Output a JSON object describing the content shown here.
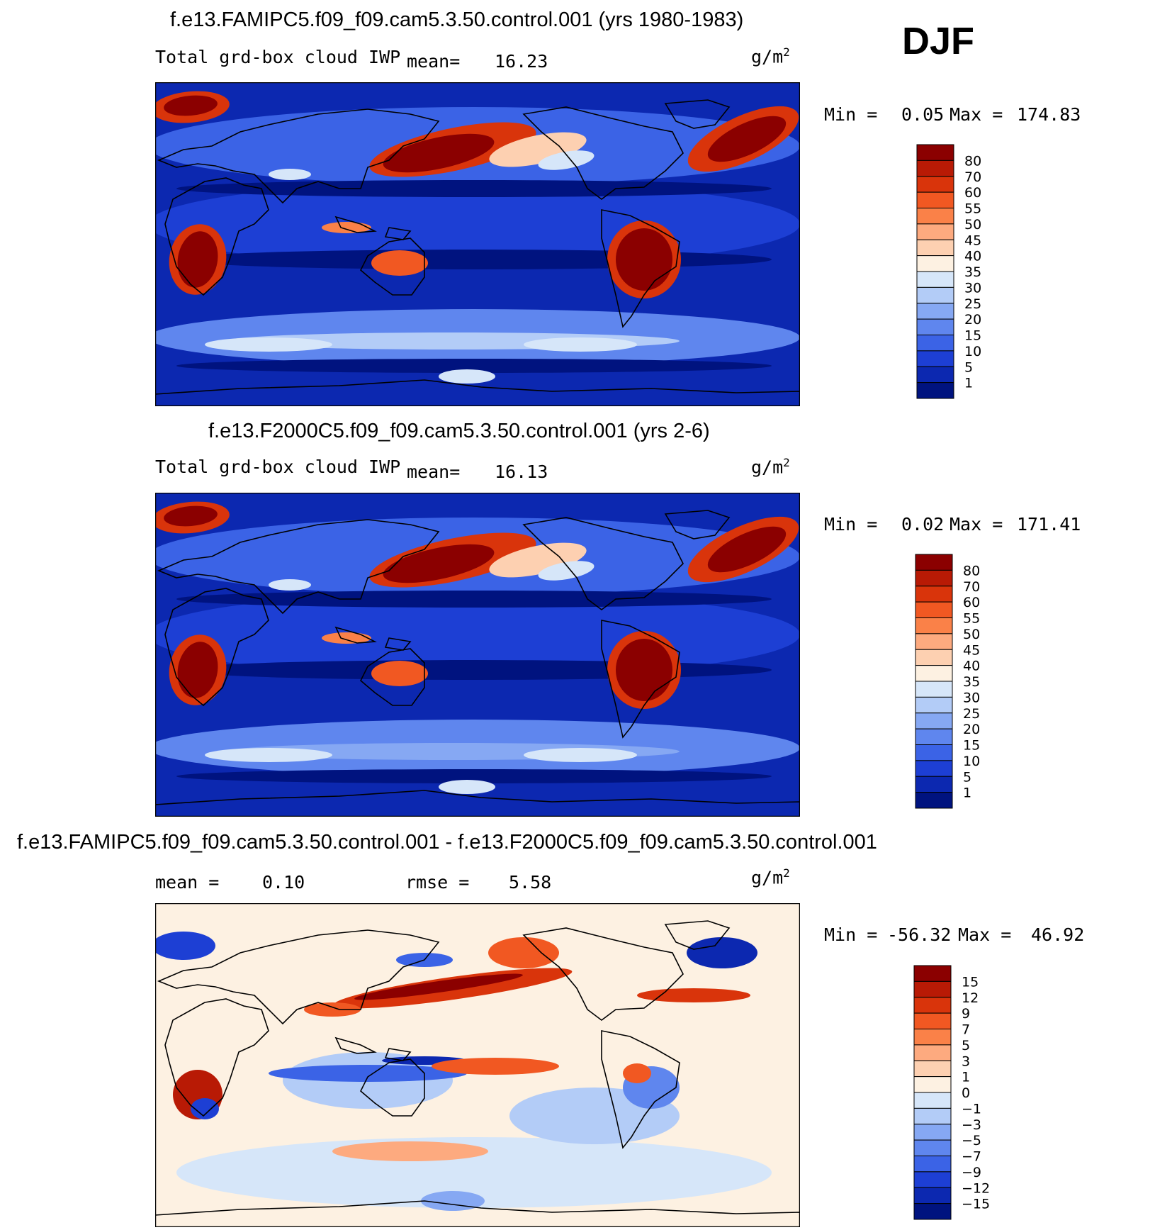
{
  "season": "DJF",
  "panels": [
    {
      "id": "p1",
      "title": "f.e13.FAMIPC5.f09_f09.cam5.3.50.control.001 (yrs 1980-1983)",
      "left_label": "Total grd-box cloud IWP",
      "mean_label": "mean=",
      "mean_value": "16.23",
      "units": "g/m",
      "units_sup": "2",
      "min_label": "Min =",
      "min_value": "0.05",
      "max_label": "Max =",
      "max_value": "174.83"
    },
    {
      "id": "p2",
      "title": "f.e13.F2000C5.f09_f09.cam5.3.50.control.001 (yrs 2-6)",
      "left_label": "Total grd-box cloud IWP",
      "mean_label": "mean=",
      "mean_value": "16.13",
      "units": "g/m",
      "units_sup": "2",
      "min_label": "Min =",
      "min_value": "0.02",
      "max_label": "Max =",
      "max_value": "171.41"
    },
    {
      "id": "p3",
      "title": "f.e13.FAMIPC5.f09_f09.cam5.3.50.control.001 - f.e13.F2000C5.f09_f09.cam5.3.50.control.001",
      "mean_label": "mean =",
      "mean_value": "0.10",
      "rmse_label": "rmse =",
      "rmse_value": "5.58",
      "units": "g/m",
      "units_sup": "2",
      "min_label": "Min =",
      "min_value": "-56.32",
      "max_label": "Max =",
      "max_value": "46.92"
    }
  ],
  "chart_data": [
    {
      "type": "heatmap",
      "title": "f.e13.FAMIPC5.f09_f09.cam5.3.50.control.001 (yrs 1980-1983)",
      "variable": "Total grd-box cloud IWP",
      "units": "g/m2",
      "mean": 16.23,
      "min": 0.05,
      "max": 174.83,
      "colorbar_levels": [
        80,
        70,
        60,
        55,
        50,
        45,
        40,
        35,
        30,
        25,
        20,
        15,
        10,
        5,
        1
      ],
      "colorbar_colors": [
        "#8b0000",
        "#b81a05",
        "#d9340b",
        "#f15822",
        "#fa8148",
        "#fdaa7f",
        "#fdd0b1",
        "#fdf1e2",
        "#d6e6f9",
        "#b3ccf7",
        "#86a8f3",
        "#5f86ee",
        "#3b63e6",
        "#1d3fd4",
        "#0c28b0",
        "#00137f"
      ]
    },
    {
      "type": "heatmap",
      "title": "f.e13.F2000C5.f09_f09.cam5.3.50.control.001 (yrs 2-6)",
      "variable": "Total grd-box cloud IWP",
      "units": "g/m2",
      "mean": 16.13,
      "min": 0.02,
      "max": 171.41,
      "colorbar_levels": [
        80,
        70,
        60,
        55,
        50,
        45,
        40,
        35,
        30,
        25,
        20,
        15,
        10,
        5,
        1
      ],
      "colorbar_colors": [
        "#8b0000",
        "#b81a05",
        "#d9340b",
        "#f15822",
        "#fa8148",
        "#fdaa7f",
        "#fdd0b1",
        "#fdf1e2",
        "#d6e6f9",
        "#b3ccf7",
        "#86a8f3",
        "#5f86ee",
        "#3b63e6",
        "#1d3fd4",
        "#0c28b0",
        "#00137f"
      ]
    },
    {
      "type": "heatmap",
      "title": "f.e13.FAMIPC5.f09_f09.cam5.3.50.control.001 - f.e13.F2000C5.f09_f09.cam5.3.50.control.001",
      "units": "g/m2",
      "mean": 0.1,
      "rmse": 5.58,
      "min": -56.32,
      "max": 46.92,
      "colorbar_levels": [
        15,
        12,
        9,
        7,
        5,
        3,
        1,
        0,
        -1,
        -3,
        -5,
        -7,
        -9,
        -12,
        -15
      ],
      "colorbar_labels": [
        "15",
        "12",
        "9",
        "7",
        "5",
        "3",
        "1",
        "0",
        "−1",
        "−3",
        "−5",
        "−7",
        "−9",
        "−12",
        "−15"
      ],
      "colorbar_colors": [
        "#8b0000",
        "#b81a05",
        "#d9340b",
        "#f15822",
        "#fa8148",
        "#fdaa7f",
        "#fdd0b1",
        "#fdf1e2",
        "#d6e6f9",
        "#b3ccf7",
        "#86a8f3",
        "#5f86ee",
        "#3b63e6",
        "#1d3fd4",
        "#0c28b0",
        "#00137f"
      ]
    }
  ]
}
